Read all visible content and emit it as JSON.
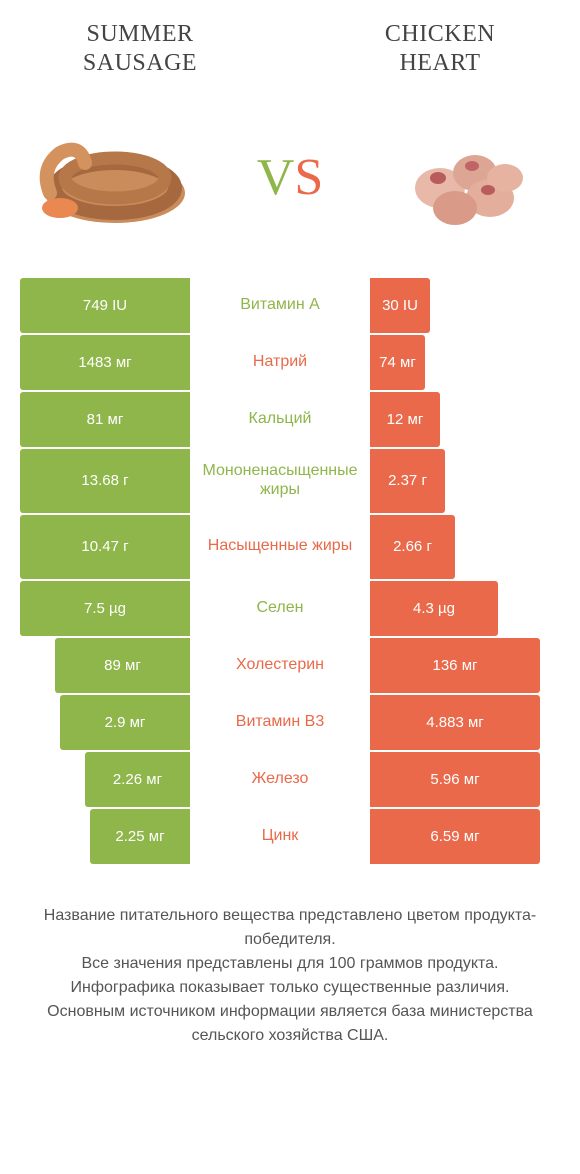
{
  "colors": {
    "green": "#8fb64a",
    "orange": "#e9694a",
    "white": "#ffffff"
  },
  "header": {
    "left": "SUMMER\nSAUSAGE",
    "right": "CHICKEN\nHEART"
  },
  "vs": {
    "v": "V",
    "s": "S"
  },
  "left_full_width": 170,
  "right_full_width": 170,
  "rows": [
    {
      "label": "Витамин A",
      "label_color": "#8fb64a",
      "left": "749 IU",
      "right": "30 IU",
      "left_color": "#8fb64a",
      "right_color": "#e9694a",
      "left_w": 170,
      "right_w": 60,
      "tall": false
    },
    {
      "label": "Натрий",
      "label_color": "#e9694a",
      "left": "1483 мг",
      "right": "74 мг",
      "left_color": "#8fb64a",
      "right_color": "#e9694a",
      "left_w": 170,
      "right_w": 55,
      "tall": false
    },
    {
      "label": "Кальций",
      "label_color": "#8fb64a",
      "left": "81 мг",
      "right": "12 мг",
      "left_color": "#8fb64a",
      "right_color": "#e9694a",
      "left_w": 170,
      "right_w": 70,
      "tall": false
    },
    {
      "label": "Мононенасыщенные жиры",
      "label_color": "#8fb64a",
      "left": "13.68 г",
      "right": "2.37 г",
      "left_color": "#8fb64a",
      "right_color": "#e9694a",
      "left_w": 170,
      "right_w": 75,
      "tall": true
    },
    {
      "label": "Насыщенные жиры",
      "label_color": "#e9694a",
      "left": "10.47 г",
      "right": "2.66 г",
      "left_color": "#8fb64a",
      "right_color": "#e9694a",
      "left_w": 170,
      "right_w": 85,
      "tall": true
    },
    {
      "label": "Селен",
      "label_color": "#8fb64a",
      "left": "7.5 µg",
      "right": "4.3 µg",
      "left_color": "#8fb64a",
      "right_color": "#e9694a",
      "left_w": 170,
      "right_w": 128,
      "tall": false
    },
    {
      "label": "Холестерин",
      "label_color": "#e9694a",
      "left": "89 мг",
      "right": "136 мг",
      "left_color": "#8fb64a",
      "right_color": "#e9694a",
      "left_w": 135,
      "right_w": 170,
      "tall": false
    },
    {
      "label": "Витамин B3",
      "label_color": "#e9694a",
      "left": "2.9 мг",
      "right": "4.883 мг",
      "left_color": "#8fb64a",
      "right_color": "#e9694a",
      "left_w": 130,
      "right_w": 170,
      "tall": false
    },
    {
      "label": "Железо",
      "label_color": "#e9694a",
      "left": "2.26 мг",
      "right": "5.96 мг",
      "left_color": "#8fb64a",
      "right_color": "#e9694a",
      "left_w": 105,
      "right_w": 170,
      "tall": false
    },
    {
      "label": "Цинк",
      "label_color": "#e9694a",
      "left": "2.25 мг",
      "right": "6.59 мг",
      "left_color": "#8fb64a",
      "right_color": "#e9694a",
      "left_w": 100,
      "right_w": 170,
      "tall": false
    }
  ],
  "footer": {
    "l1": "Название питательного вещества представлено цветом продукта-победителя.",
    "l2": "Все значения представлены для 100 граммов продукта.",
    "l3": "Инфографика показывает только существенные различия.",
    "l4": "Основным источником информации является база министерства сельского хозяйства США."
  }
}
